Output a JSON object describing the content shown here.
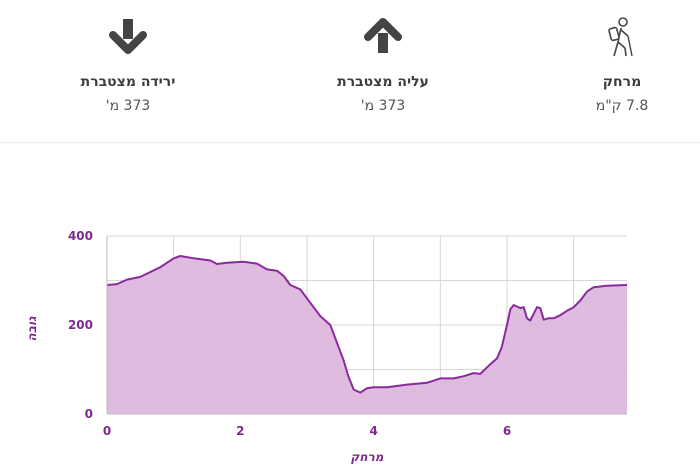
{
  "stats": {
    "descent": {
      "label": "ירידה מצטברת",
      "value": "373 מ'",
      "icon": "arrow-down-icon"
    },
    "ascent": {
      "label": "עליה מצטברת",
      "value": "373 מ'",
      "icon": "arrow-up-icon"
    },
    "distance": {
      "label": "מרחק",
      "value": "7.8 ק\"מ",
      "icon": "hiker-icon"
    }
  },
  "colors": {
    "line": "#8a2a9e",
    "fill": "#dcb5dc",
    "axis_text": "#7e2a8e",
    "grid": "#d6d6d6",
    "icon": "#444444"
  },
  "chart_data": {
    "type": "area",
    "xlabel": "מרחק",
    "ylabel": "גובה",
    "xlim": [
      0,
      7.8
    ],
    "ylim": [
      0,
      400
    ],
    "x_ticks": [
      0,
      2,
      4,
      6
    ],
    "y_ticks": [
      0,
      200,
      400
    ],
    "grid": true,
    "series": [
      {
        "x": [
          0,
          0.15,
          0.3,
          0.5,
          0.8,
          1.0,
          1.1,
          1.3,
          1.55,
          1.65,
          1.8,
          2.05,
          2.25,
          2.4,
          2.55,
          2.65,
          2.75,
          2.9,
          3.05,
          3.2,
          3.35,
          3.45,
          3.55,
          3.62,
          3.7,
          3.8,
          3.9,
          4.0,
          4.2,
          4.5,
          4.8,
          5.0,
          5.2,
          5.35,
          5.5,
          5.6,
          5.75,
          5.85,
          5.92,
          6.0,
          6.05,
          6.1,
          6.2,
          6.25,
          6.3,
          6.35,
          6.45,
          6.5,
          6.55,
          6.62,
          6.7,
          6.8,
          6.9,
          7.0,
          7.1,
          7.2,
          7.3,
          7.5,
          7.8
        ],
        "y": [
          290,
          292,
          302,
          308,
          330,
          350,
          355,
          350,
          345,
          337,
          340,
          342,
          338,
          325,
          322,
          310,
          290,
          280,
          250,
          220,
          200,
          160,
          120,
          85,
          55,
          48,
          58,
          60,
          60,
          66,
          70,
          80,
          80,
          85,
          92,
          90,
          112,
          125,
          150,
          200,
          235,
          245,
          238,
          240,
          215,
          210,
          240,
          238,
          212,
          215,
          215,
          222,
          232,
          240,
          255,
          275,
          285,
          288,
          290
        ]
      }
    ]
  }
}
